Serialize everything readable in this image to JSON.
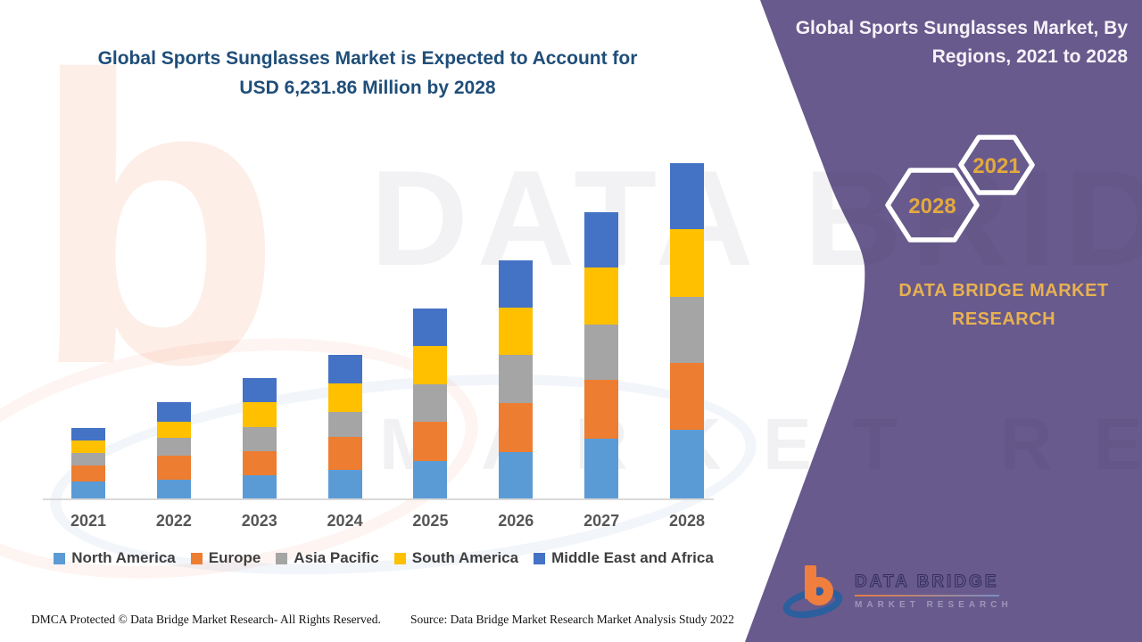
{
  "title": {
    "line1": "Global Sports Sunglasses Market is Expected to Account for",
    "line2": "USD 6,231.86 Million by 2028"
  },
  "panel": {
    "title": "Global Sports Sunglasses Market, By Regions, 2021 to 2028",
    "hex_small": {
      "year": "2021"
    },
    "hex_large": {
      "year": "2028"
    },
    "brand": {
      "line1": "DATA BRIDGE MARKET",
      "line2": "RESEARCH"
    }
  },
  "watermark": {
    "letter_b": "b",
    "big_text": "DATA BRIDGE",
    "sub_text": "MARKET RESEARCH"
  },
  "logo": {
    "title": "DATA BRIDGE",
    "subtitle": "MARKET RESEARCH"
  },
  "footer": {
    "left": "DMCA Protected © Data Bridge Market Research- All Rights Reserved.",
    "source": "Source: Data Bridge Market Research Market Analysis Study 2022"
  },
  "colors": {
    "panel_purple": "#685A8C",
    "accent_gold": "#E8B152",
    "title_blue": "#1F4E79",
    "axis_gray": "#D9D9D9"
  },
  "chart_data": {
    "type": "bar",
    "stacked": true,
    "units": "USD Million",
    "title": "Global Sports Sunglasses Market is Expected to Account for USD 6,231.86 Million by 2028",
    "xlabel": "",
    "ylabel": "",
    "grid": false,
    "legend_position": "bottom",
    "anchor_total_2028": 6231.86,
    "values_are_estimates": true,
    "categories": [
      "2021",
      "2022",
      "2023",
      "2024",
      "2025",
      "2026",
      "2027",
      "2028"
    ],
    "series": [
      {
        "name": "North America",
        "color": "#5B9BD5",
        "values": [
          315,
          348,
          431,
          530,
          696,
          862,
          1110,
          1276
        ]
      },
      {
        "name": "Europe",
        "color": "#ED7D31",
        "values": [
          298,
          448,
          448,
          613,
          729,
          912,
          1094,
          1243
        ]
      },
      {
        "name": "Asia Pacific",
        "color": "#A5A5A5",
        "values": [
          232,
          332,
          448,
          464,
          696,
          895,
          1028,
          1227
        ]
      },
      {
        "name": "South America",
        "color": "#FFC000",
        "values": [
          232,
          298,
          464,
          530,
          713,
          878,
          1061,
          1260
        ]
      },
      {
        "name": "Middle East and Africa",
        "color": "#4472C4",
        "values": [
          232,
          365,
          448,
          530,
          696,
          878,
          1028,
          1225.86
        ]
      }
    ],
    "totals": [
      1309,
      1791,
      2239,
      2667,
      3530,
      4425,
      5321,
      6231.86
    ]
  }
}
